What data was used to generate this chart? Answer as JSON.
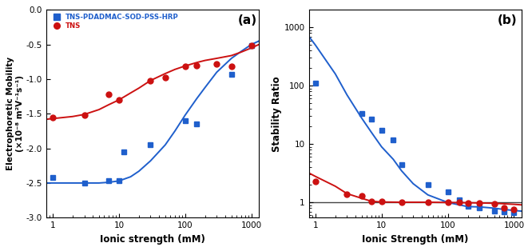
{
  "panel_a": {
    "title": "(a)",
    "xlabel": "Ionic strength (mM)",
    "ylabel": "Electrophoretic Mobility\n(×10⁻⁸ m²V⁻¹s⁻¹)",
    "ylim": [
      -3.0,
      0.0
    ],
    "xlim": [
      0.8,
      1300
    ],
    "blue_x": [
      1.0,
      3.0,
      7.0,
      10.0,
      12.0,
      30.0,
      100.0,
      150.0,
      500.0,
      1000.0
    ],
    "blue_y": [
      -2.42,
      -2.5,
      -2.47,
      -2.47,
      -2.05,
      -1.95,
      -1.6,
      -1.65,
      -0.93,
      -0.52
    ],
    "red_x": [
      1.0,
      3.0,
      7.0,
      10.0,
      30.0,
      50.0,
      100.0,
      150.0,
      300.0,
      500.0,
      1000.0
    ],
    "red_y": [
      -1.55,
      -1.52,
      -1.22,
      -1.3,
      -1.02,
      -0.98,
      -0.82,
      -0.8,
      -0.78,
      -0.82,
      -0.52
    ],
    "blue_line_x": [
      0.8,
      1.0,
      2.0,
      3.0,
      5.0,
      7.0,
      10.0,
      15.0,
      20.0,
      30.0,
      50.0,
      70.0,
      100.0,
      150.0,
      200.0,
      300.0,
      500.0,
      700.0,
      1000.0,
      1300.0
    ],
    "blue_line_y": [
      -2.5,
      -2.5,
      -2.5,
      -2.5,
      -2.5,
      -2.49,
      -2.47,
      -2.41,
      -2.33,
      -2.18,
      -1.95,
      -1.75,
      -1.52,
      -1.28,
      -1.12,
      -0.9,
      -0.7,
      -0.6,
      -0.5,
      -0.45
    ],
    "red_line_x": [
      0.8,
      1.0,
      2.0,
      3.0,
      5.0,
      7.0,
      10.0,
      15.0,
      20.0,
      30.0,
      50.0,
      70.0,
      100.0,
      150.0,
      200.0,
      300.0,
      500.0,
      700.0,
      1000.0,
      1300.0
    ],
    "red_line_y": [
      -1.58,
      -1.57,
      -1.54,
      -1.51,
      -1.44,
      -1.37,
      -1.3,
      -1.2,
      -1.13,
      -1.02,
      -0.92,
      -0.86,
      -0.81,
      -0.76,
      -0.73,
      -0.7,
      -0.66,
      -0.61,
      -0.55,
      -0.5
    ],
    "legend_blue": "TNS-PDADMAC-SOD-PSS-HRP",
    "legend_red": "TNS",
    "blue_color": "#1f5fcc",
    "red_color": "#cc1111"
  },
  "panel_b": {
    "title": "(b)",
    "xlabel": "Ionic Strength (mM)",
    "ylabel": "Stability Ratio",
    "ylim": [
      0.55,
      2000
    ],
    "xlim": [
      0.8,
      1300
    ],
    "blue_x": [
      1.0,
      5.0,
      7.0,
      10.0,
      15.0,
      20.0,
      50.0,
      100.0,
      150.0,
      200.0,
      300.0,
      500.0,
      700.0,
      1000.0
    ],
    "blue_y": [
      110.0,
      33.0,
      27.0,
      17.0,
      12.0,
      4.5,
      2.0,
      1.5,
      1.1,
      0.85,
      0.82,
      0.72,
      0.7,
      0.68
    ],
    "red_x": [
      1.0,
      3.0,
      5.0,
      7.0,
      10.0,
      20.0,
      50.0,
      100.0,
      150.0,
      200.0,
      300.0,
      500.0,
      700.0,
      1000.0
    ],
    "red_y": [
      2.3,
      1.4,
      1.3,
      1.05,
      1.05,
      1.02,
      1.02,
      1.0,
      1.0,
      0.98,
      0.98,
      0.96,
      0.8,
      0.75
    ],
    "blue_seg1_x": [
      0.8,
      1.0,
      2.0,
      3.0,
      5.0,
      7.0,
      10.0,
      15.0,
      20.0,
      30.0,
      50.0,
      100.0,
      200.0
    ],
    "blue_seg1_y": [
      700.0,
      500.0,
      160.0,
      70.0,
      28.0,
      16.0,
      9.0,
      5.5,
      3.5,
      2.1,
      1.35,
      1.0,
      0.85
    ],
    "blue_seg2_x": [
      200.0,
      300.0,
      500.0,
      700.0,
      1000.0,
      1300.0
    ],
    "blue_seg2_y": [
      0.85,
      0.84,
      0.8,
      0.76,
      0.73,
      0.71
    ],
    "red_seg1_x": [
      0.8,
      1.0,
      2.0,
      3.0,
      5.0,
      7.0
    ],
    "red_seg1_y": [
      3.2,
      2.8,
      1.9,
      1.42,
      1.18,
      1.05
    ],
    "red_seg2_x": [
      7.0,
      10.0,
      20.0,
      50.0,
      100.0,
      200.0,
      500.0,
      1000.0,
      1300.0
    ],
    "red_seg2_y": [
      1.05,
      1.02,
      1.01,
      1.01,
      1.0,
      0.99,
      0.97,
      0.93,
      0.91
    ],
    "hline_y": 1.0,
    "blue_color": "#1f5fcc",
    "red_color": "#cc1111"
  }
}
